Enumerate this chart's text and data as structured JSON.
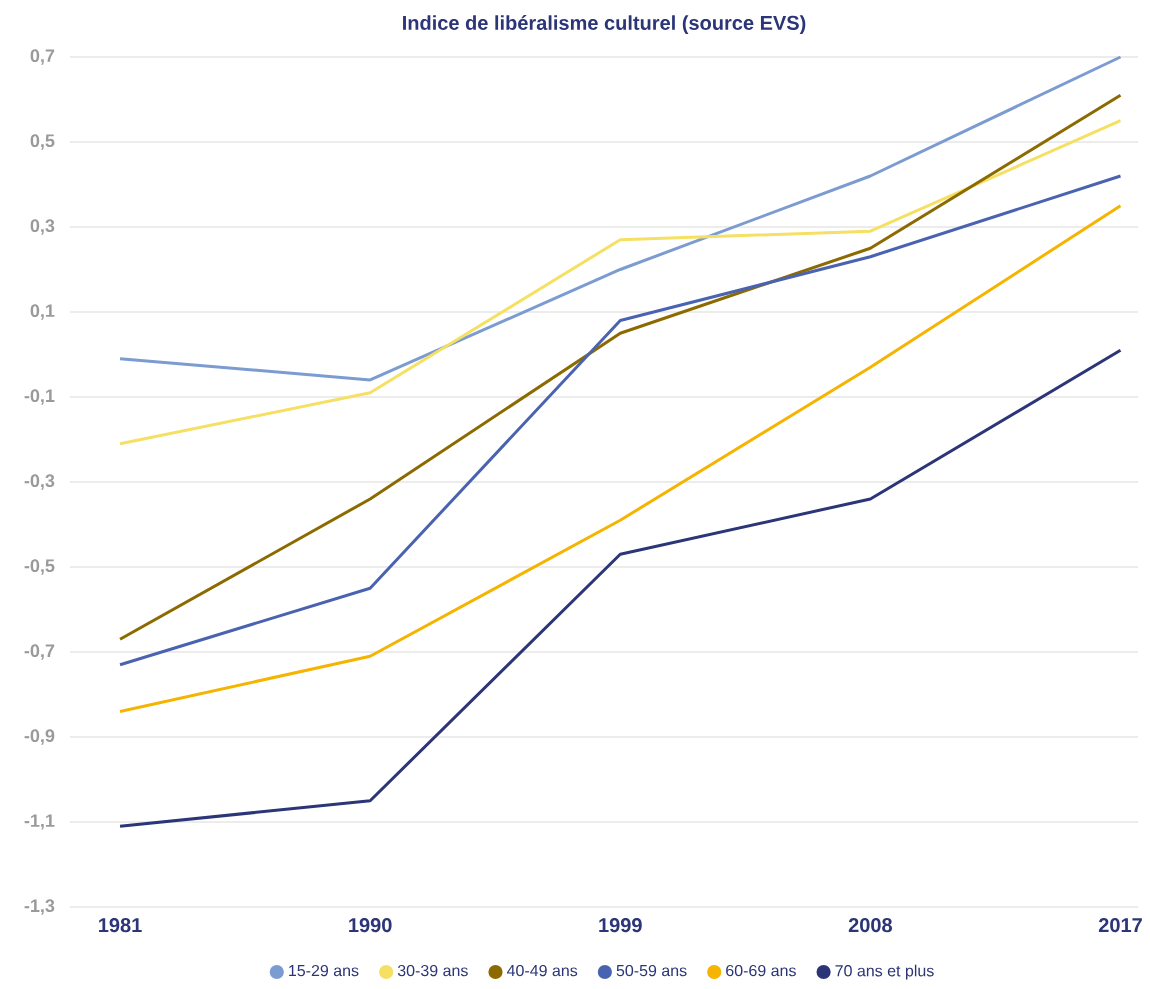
{
  "chart_data": {
    "type": "line",
    "title": "Indice de libéralisme culturel (source EVS)",
    "categories": [
      "1981",
      "1990",
      "1999",
      "2008",
      "2017"
    ],
    "series": [
      {
        "name": "15-29 ans",
        "color": "#7b9bd1",
        "values": [
          -0.01,
          -0.06,
          0.2,
          0.42,
          0.7
        ]
      },
      {
        "name": "30-39 ans",
        "color": "#f5e063",
        "values": [
          -0.21,
          -0.09,
          0.27,
          0.29,
          0.55
        ]
      },
      {
        "name": "40-49 ans",
        "color": "#8c6a00",
        "values": [
          -0.67,
          -0.34,
          0.05,
          0.25,
          0.61
        ]
      },
      {
        "name": "50-59 ans",
        "color": "#4a63b0",
        "values": [
          -0.73,
          -0.55,
          0.08,
          0.23,
          0.42
        ]
      },
      {
        "name": "60-69 ans",
        "color": "#f5b400",
        "values": [
          -0.84,
          -0.71,
          -0.39,
          -0.03,
          0.35
        ]
      },
      {
        "name": "70 ans et plus",
        "color": "#2b3577",
        "values": [
          -1.11,
          -1.05,
          -0.47,
          -0.34,
          0.01
        ]
      }
    ],
    "ylim": [
      -1.3,
      0.7
    ],
    "yticks": [
      {
        "value": -1.3,
        "label": "-1,3"
      },
      {
        "value": -1.1,
        "label": "-1,1"
      },
      {
        "value": -0.9,
        "label": "-0,9"
      },
      {
        "value": -0.7,
        "label": "-0,7"
      },
      {
        "value": -0.5,
        "label": "-0,5"
      },
      {
        "value": -0.3,
        "label": "-0,3"
      },
      {
        "value": -0.1,
        "label": "-0,1"
      },
      {
        "value": 0.1,
        "label": "0,1"
      },
      {
        "value": 0.3,
        "label": "0,3"
      },
      {
        "value": 0.5,
        "label": "0,5"
      },
      {
        "value": 0.7,
        "label": "0,7"
      }
    ],
    "grid": "y",
    "legend": "bottom"
  }
}
